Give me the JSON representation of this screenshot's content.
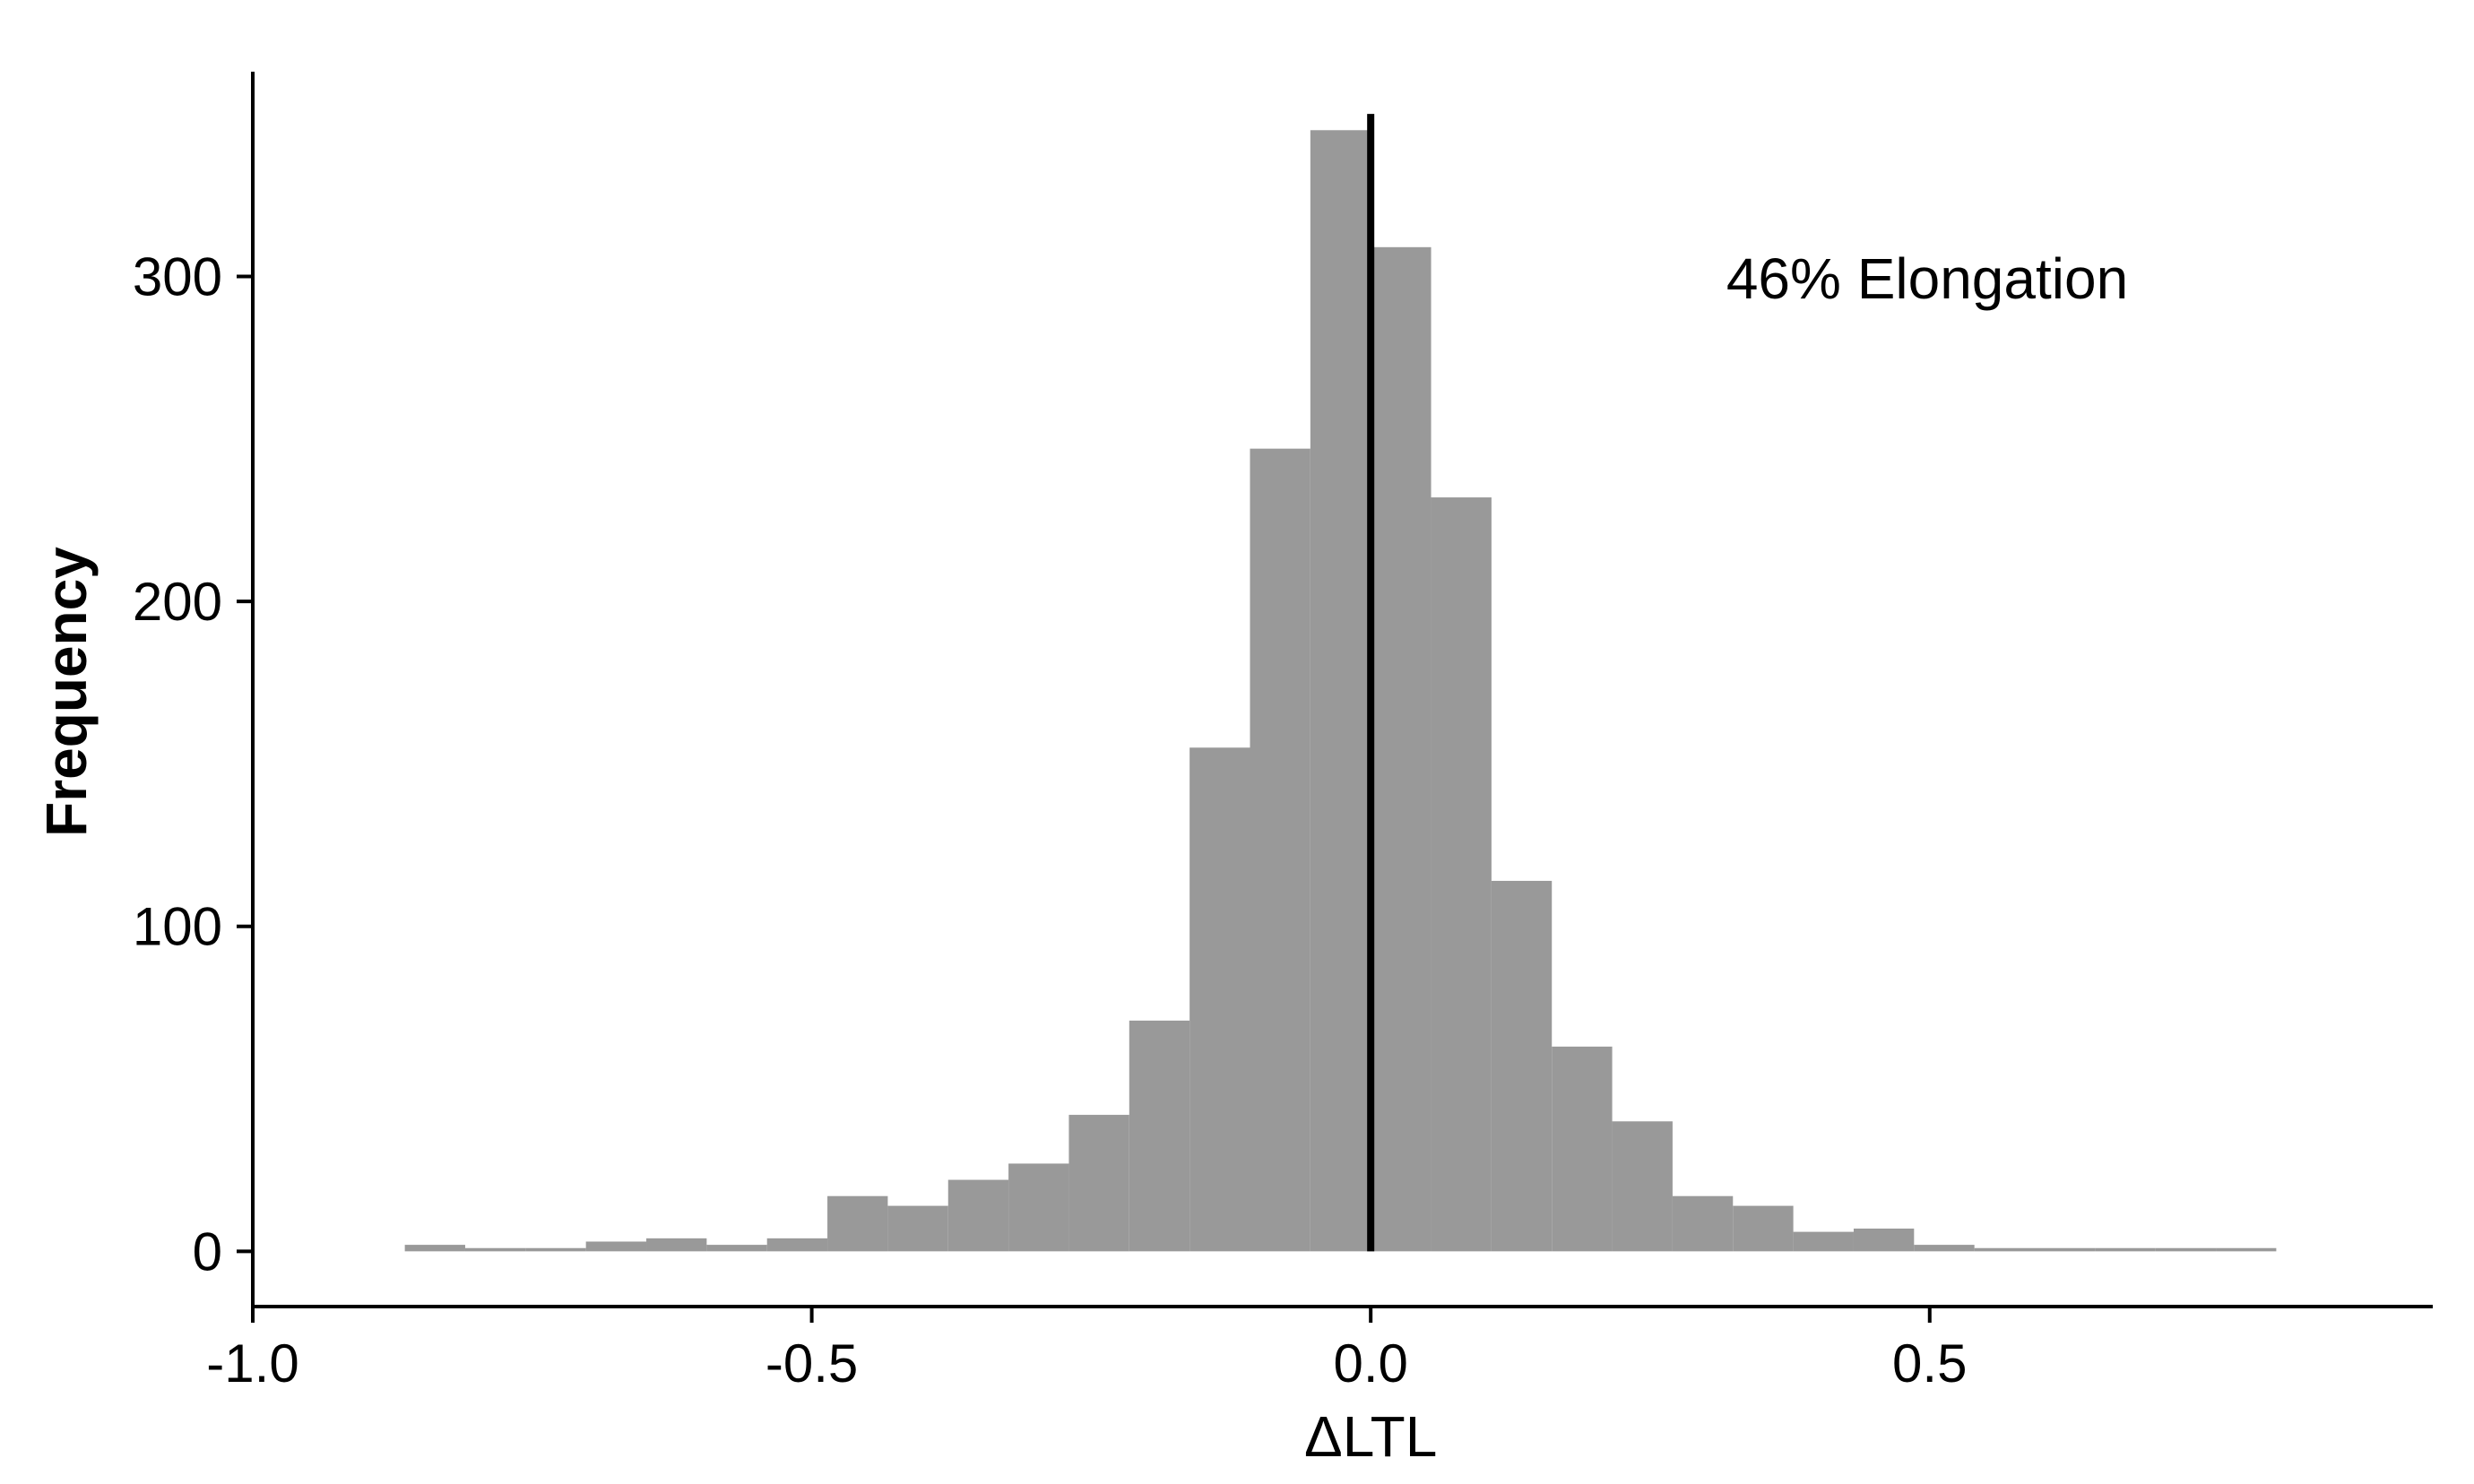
{
  "chart_data": {
    "type": "bar",
    "subtype": "histogram",
    "title": "",
    "xlabel": "ΔLTL",
    "ylabel": "Frequency",
    "xlim": [
      -1.0,
      0.95
    ],
    "ylim": [
      -17,
      363
    ],
    "x_ticks": [
      {
        "value": -1.0,
        "label": "-1.0"
      },
      {
        "value": -0.5,
        "label": "-0.5"
      },
      {
        "value": 0.0,
        "label": "0.0"
      },
      {
        "value": 0.5,
        "label": "0.5"
      }
    ],
    "y_ticks": [
      {
        "value": 0,
        "label": "0"
      },
      {
        "value": 100,
        "label": "100"
      },
      {
        "value": 200,
        "label": "200"
      },
      {
        "value": 300,
        "label": "300"
      }
    ],
    "bin_width": 0.054,
    "bins": [
      {
        "start": -0.864,
        "count": 2
      },
      {
        "start": -0.81,
        "count": 1
      },
      {
        "start": -0.756,
        "count": 1
      },
      {
        "start": -0.702,
        "count": 3
      },
      {
        "start": -0.648,
        "count": 4
      },
      {
        "start": -0.594,
        "count": 2
      },
      {
        "start": -0.54,
        "count": 4
      },
      {
        "start": -0.486,
        "count": 17
      },
      {
        "start": -0.432,
        "count": 14
      },
      {
        "start": -0.378,
        "count": 22
      },
      {
        "start": -0.324,
        "count": 27
      },
      {
        "start": -0.27,
        "count": 42
      },
      {
        "start": -0.216,
        "count": 71
      },
      {
        "start": -0.162,
        "count": 155
      },
      {
        "start": -0.108,
        "count": 247
      },
      {
        "start": -0.054,
        "count": 345
      },
      {
        "start": 0.0,
        "count": 309
      },
      {
        "start": 0.054,
        "count": 232
      },
      {
        "start": 0.108,
        "count": 114
      },
      {
        "start": 0.162,
        "count": 63
      },
      {
        "start": 0.216,
        "count": 40
      },
      {
        "start": 0.27,
        "count": 17
      },
      {
        "start": 0.324,
        "count": 14
      },
      {
        "start": 0.378,
        "count": 6
      },
      {
        "start": 0.432,
        "count": 7
      },
      {
        "start": 0.486,
        "count": 2
      },
      {
        "start": 0.54,
        "count": 1
      },
      {
        "start": 0.594,
        "count": 1
      },
      {
        "start": 0.648,
        "count": 1
      },
      {
        "start": 0.702,
        "count": 1
      },
      {
        "start": 0.756,
        "count": 1
      }
    ],
    "reference_line": {
      "x": 0.0,
      "y_top": 350
    },
    "annotation": "46% Elongation",
    "annotation_position": "top-right",
    "grid": false,
    "legend": "none",
    "colors": {
      "bar": "#999999",
      "axis": "#000000",
      "reference_line": "#000000",
      "background": "#ffffff"
    }
  }
}
